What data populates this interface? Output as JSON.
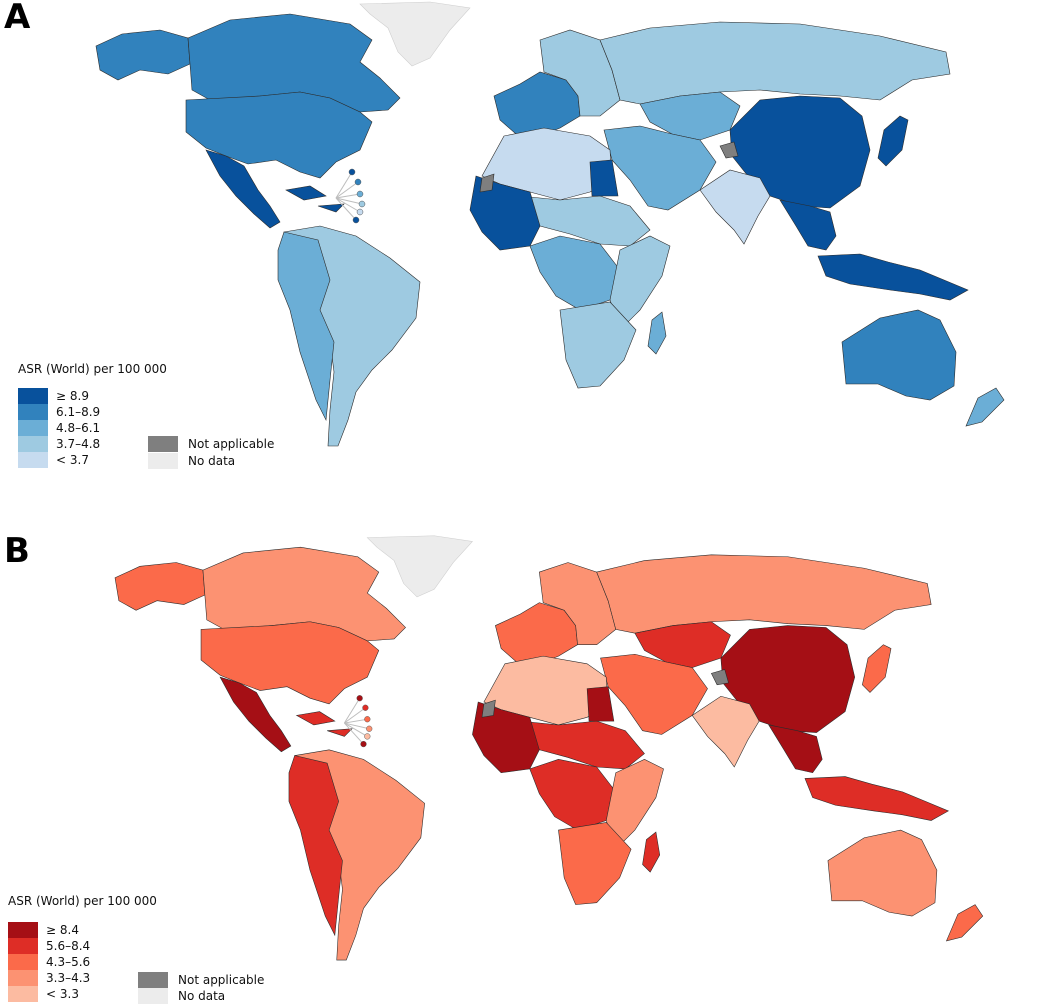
{
  "panels": [
    {
      "letter": "A",
      "legend": {
        "title": "ASR (World) per 100 000",
        "classes": [
          {
            "label": "≥ 8.9",
            "color": "#08519c"
          },
          {
            "label": "6.1–8.9",
            "color": "#3182bd"
          },
          {
            "label": "4.8–6.1",
            "color": "#6baed6"
          },
          {
            "label": "3.7–4.8",
            "color": "#9ecae1"
          },
          {
            "label": "< 3.7",
            "color": "#c6dbef"
          }
        ],
        "not_applicable": {
          "label": "Not applicable",
          "color": "#7f7f7f"
        },
        "no_data": {
          "label": "No data",
          "color": "#ececec"
        }
      },
      "regions": {
        "north_america": 1,
        "usa": 1,
        "alaska": 1,
        "central_america": 0,
        "caribbean": 0,
        "south_america": 3,
        "andes": 2,
        "europe_west": 1,
        "europe_east": 3,
        "russia": 3,
        "middle_east": 2,
        "central_asia": 2,
        "china_east_asia": 0,
        "south_asia": 4,
        "southeast_asia": 0,
        "indonesia": 0,
        "north_africa": 4,
        "west_africa": 0,
        "sahel": 3,
        "central_africa": 2,
        "east_africa": 3,
        "southern_africa": 3,
        "madagascar": 2,
        "australia": 1,
        "new_zealand": 2,
        "japan": 0,
        "egypt": 0,
        "greenland": "no_data"
      }
    },
    {
      "letter": "B",
      "legend": {
        "title": "ASR (World) per 100 000",
        "classes": [
          {
            "label": "≥ 8.4",
            "color": "#a50f15"
          },
          {
            "label": "5.6–8.4",
            "color": "#de2d26"
          },
          {
            "label": "4.3–5.6",
            "color": "#fb6a4a"
          },
          {
            "label": "3.3–4.3",
            "color": "#fc9272"
          },
          {
            "label": "< 3.3",
            "color": "#fcbba1"
          }
        ],
        "not_applicable": {
          "label": "Not applicable",
          "color": "#7f7f7f"
        },
        "no_data": {
          "label": "No data",
          "color": "#ececec"
        }
      },
      "regions": {
        "north_america": 3,
        "usa": 2,
        "alaska": 2,
        "central_america": 0,
        "caribbean": 1,
        "south_america": 3,
        "andes": 1,
        "europe_west": 2,
        "europe_east": 3,
        "russia": 3,
        "middle_east": 2,
        "central_asia": 1,
        "china_east_asia": 0,
        "south_asia": 4,
        "southeast_asia": 0,
        "indonesia": 1,
        "north_africa": 4,
        "west_africa": 0,
        "sahel": 1,
        "central_africa": 1,
        "east_africa": 3,
        "southern_africa": 2,
        "madagascar": 1,
        "australia": 3,
        "new_zealand": 2,
        "japan": 2,
        "egypt": 0,
        "greenland": "no_data"
      }
    }
  ]
}
